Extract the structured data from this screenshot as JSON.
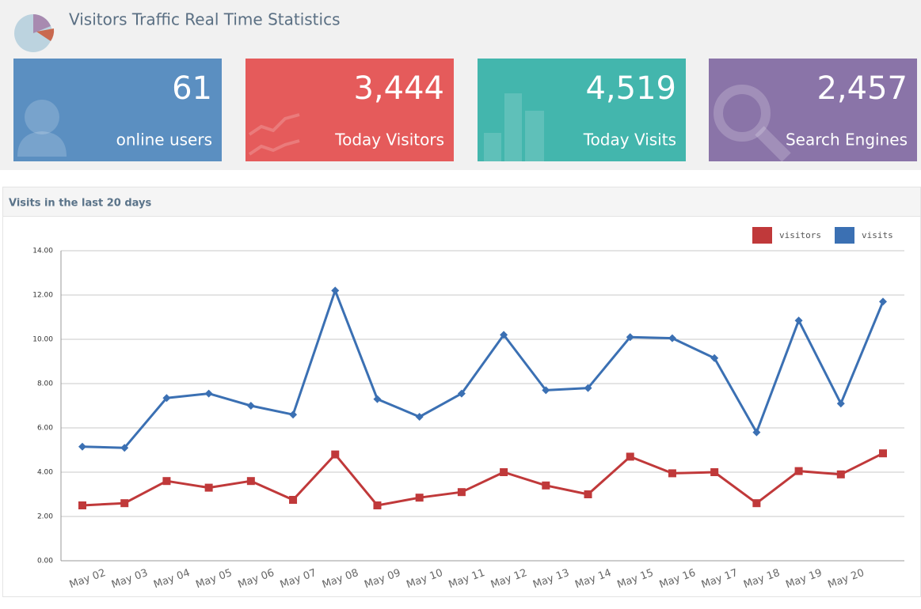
{
  "header": {
    "title": "Visitors Traffic Real Time Statistics"
  },
  "tiles": [
    {
      "value": "61",
      "label": "online users"
    },
    {
      "value": "3,444",
      "label": "Today Visitors"
    },
    {
      "value": "4,519",
      "label": "Today Visits"
    },
    {
      "value": "2,457",
      "label": "Search Engines"
    }
  ],
  "chart_data": {
    "type": "line",
    "title": "Visits in the last 20 days",
    "categories": [
      "May 02",
      "May 03",
      "May 04",
      "May 05",
      "May 06",
      "May 07",
      "May 08",
      "May 09",
      "May 10",
      "May 11",
      "May 12",
      "May 13",
      "May 14",
      "May 15",
      "May 16",
      "May 17",
      "May 18",
      "May 19",
      "May 20",
      null
    ],
    "series": [
      {
        "name": "visitors",
        "color": "#c0393a",
        "values": [
          2.5,
          2.6,
          3.6,
          3.3,
          3.6,
          2.75,
          4.8,
          2.5,
          2.85,
          3.1,
          4.0,
          3.4,
          3.0,
          4.7,
          3.95,
          4.0,
          2.6,
          4.05,
          3.9,
          4.85
        ]
      },
      {
        "name": "visits",
        "color": "#3b70b3",
        "values": [
          5.15,
          5.1,
          7.35,
          7.55,
          7.0,
          6.6,
          12.2,
          7.3,
          6.5,
          7.55,
          10.2,
          7.7,
          7.8,
          10.1,
          10.05,
          9.15,
          5.8,
          10.85,
          7.1,
          11.7
        ]
      }
    ],
    "ylim": [
      0,
      14
    ],
    "yticks": [
      {
        "value": 0,
        "label": "0.00"
      },
      {
        "value": 2,
        "label": "2.00"
      },
      {
        "value": 4,
        "label": "4.00"
      },
      {
        "value": 6,
        "label": "6.00"
      },
      {
        "value": 8,
        "label": "8.00"
      },
      {
        "value": 10,
        "label": "10.00"
      },
      {
        "value": 12,
        "label": "12.00"
      },
      {
        "value": 14,
        "label": "14.00"
      }
    ],
    "grid": true,
    "legend": "top-right"
  }
}
